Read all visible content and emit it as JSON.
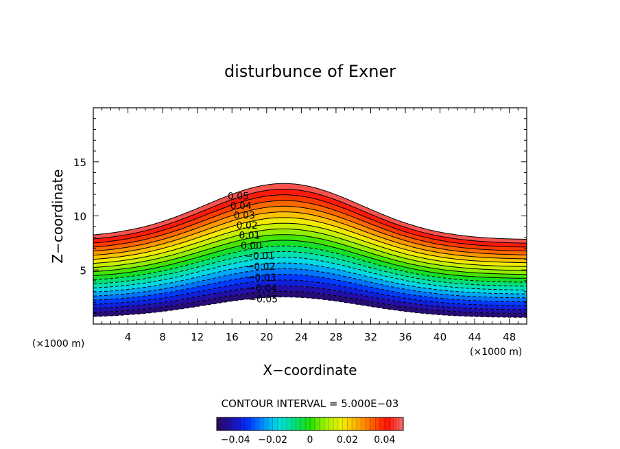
{
  "chart_data": {
    "type": "contour",
    "title": "disturbunce of Exner",
    "xlabel": "X−coordinate",
    "ylabel": "Z−coordinate",
    "x_unit_left": "(×1000 m)",
    "x_unit_right": "(×1000 m)",
    "xlim": [
      0,
      50
    ],
    "ylim": [
      0,
      20
    ],
    "x_ticks": [
      4,
      8,
      12,
      16,
      20,
      24,
      28,
      32,
      36,
      40,
      44,
      48
    ],
    "y_ticks": [
      5,
      10,
      15
    ],
    "contour_interval_text": "CONTOUR INTERVAL = 5.000E−03",
    "contour_interval": 0.005,
    "value_range": [
      -0.05,
      0.05
    ],
    "negative_contours_dashed": true,
    "field": {
      "description": "layers following a hill-shaped surface",
      "top_value": 0.05,
      "bottom_value": -0.05,
      "top_height_left": 8.0,
      "top_height_peak": 13.0,
      "top_height_right": 7.8,
      "bottom_height_left": 0.6,
      "bottom_height_peak": 2.5,
      "bottom_height_right": 0.6,
      "peak_x": 22
    },
    "contour_labels": [
      "0.05",
      "0.04",
      "0.03",
      "0.02",
      "0.01",
      "0.00",
      "−0.01",
      "−0.02",
      "−0.03",
      "−0.04",
      "−0.05"
    ],
    "colorbar": {
      "ticks": [
        -0.04,
        -0.02,
        0,
        0.02,
        0.04
      ],
      "tick_labels": [
        "−0.04",
        "−0.02",
        "0",
        "0.02",
        "0.04"
      ],
      "colors": [
        "#2a0a5a",
        "#2010b0",
        "#0030ff",
        "#0090ff",
        "#00e0e0",
        "#00e080",
        "#20e000",
        "#a0f000",
        "#f0f000",
        "#ffb000",
        "#ff6000",
        "#ff1000",
        "#f07070"
      ]
    }
  }
}
